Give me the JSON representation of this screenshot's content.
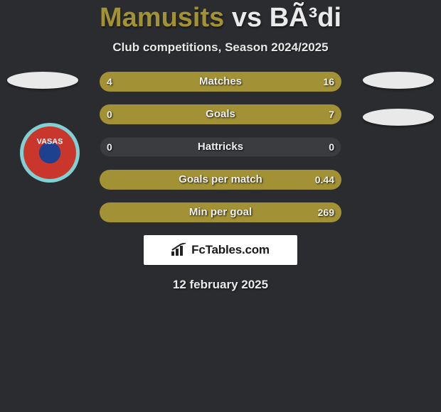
{
  "title": {
    "player1": "Mamusits",
    "vs": "vs",
    "player2": "BÃ³di"
  },
  "subtitle": "Club competitions, Season 2024/2025",
  "colors": {
    "left": "#a29135",
    "right": "#a29135",
    "bg": "#2a2c2f",
    "bar_bg": "#3a3c3f"
  },
  "bars": [
    {
      "label": "Matches",
      "left": "4",
      "right": "16",
      "left_pct": 20,
      "right_pct": 80
    },
    {
      "label": "Goals",
      "left": "0",
      "right": "7",
      "left_pct": 0,
      "right_pct": 100
    },
    {
      "label": "Hattricks",
      "left": "0",
      "right": "0",
      "left_pct": 0,
      "right_pct": 0
    },
    {
      "label": "Goals per match",
      "left": "",
      "right": "0.44",
      "left_pct": 0,
      "right_pct": 100
    },
    {
      "label": "Min per goal",
      "left": "",
      "right": "269",
      "left_pct": 0,
      "right_pct": 100
    }
  ],
  "badge": {
    "outer_ring": "#81d0d4",
    "inner": "#c9372c",
    "mid_ring": "#1f3f8f",
    "text": "VASAS",
    "text_color": "#ffffff"
  },
  "footer_brand": "FcTables.com",
  "date": "12 february 2025"
}
